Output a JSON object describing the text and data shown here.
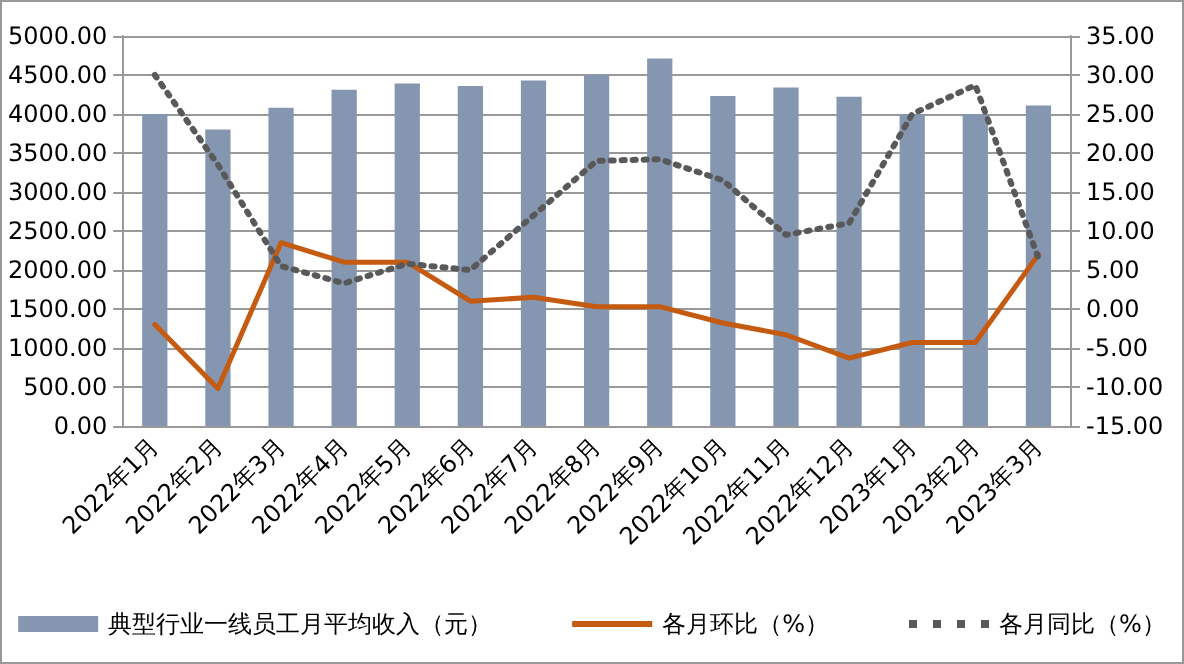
{
  "chart_data": {
    "type": "bar",
    "categories": [
      "2022年1月",
      "2022年2月",
      "2022年3月",
      "2022年4月",
      "2022年5月",
      "2022年6月",
      "2022年7月",
      "2022年8月",
      "2022年9月",
      "2022年10月",
      "2022年11月",
      "2022年12月",
      "2023年1月",
      "2023年2月",
      "2023年3月"
    ],
    "series": [
      {
        "name": "典型行业一线员工月平均收入（元）",
        "color": "#8496b0",
        "values": [
          4000,
          3800,
          4080,
          4310,
          4390,
          4360,
          4430,
          4500,
          4710,
          4230,
          4340,
          4220,
          4000,
          4000,
          4110
        ]
      },
      {
        "name": "各月环比（%）",
        "type": "line",
        "axis": "y2",
        "color": "#c55a11",
        "line_style": "solid",
        "values": [
          -2.0,
          -10.2,
          8.5,
          6.0,
          6.0,
          1.0,
          1.5,
          0.3,
          0.3,
          -1.8,
          -3.3,
          -6.3,
          -4.3,
          -4.3,
          7.0
        ]
      },
      {
        "name": "各月同比（%）",
        "type": "line",
        "axis": "y2",
        "color": "#595959",
        "line_style": "dotted",
        "values": [
          30.0,
          18.5,
          5.5,
          3.3,
          5.8,
          5.0,
          12.0,
          19.0,
          19.2,
          16.5,
          9.5,
          11.0,
          25.0,
          28.7,
          6.5
        ]
      }
    ],
    "ylim": [
      0,
      5000
    ],
    "yticks": [
      {
        "value": 0,
        "label": "0.00"
      },
      {
        "value": 500,
        "label": "500.00"
      },
      {
        "value": 1000,
        "label": "1000.00"
      },
      {
        "value": 1500,
        "label": "1500.00"
      },
      {
        "value": 2000,
        "label": "2000.00"
      },
      {
        "value": 2500,
        "label": "2500.00"
      },
      {
        "value": 3000,
        "label": "3000.00"
      },
      {
        "value": 3500,
        "label": "3500.00"
      },
      {
        "value": 4000,
        "label": "4000.00"
      },
      {
        "value": 4500,
        "label": "4500.00"
      },
      {
        "value": 5000,
        "label": "5000.00"
      }
    ],
    "y2lim": [
      -15,
      35
    ],
    "y2ticks": [
      {
        "value": -15,
        "label": "-15.00"
      },
      {
        "value": -10,
        "label": "-10.00"
      },
      {
        "value": -5,
        "label": "-5.00"
      },
      {
        "value": 0,
        "label": "0.00"
      },
      {
        "value": 5,
        "label": "5.00"
      },
      {
        "value": 10,
        "label": "10.00"
      },
      {
        "value": 15,
        "label": "15.00"
      },
      {
        "value": 20,
        "label": "20.00"
      },
      {
        "value": 25,
        "label": "25.00"
      },
      {
        "value": 30,
        "label": "30.00"
      },
      {
        "value": 35,
        "label": "35.00"
      }
    ],
    "grid": "y",
    "legend": "bottom",
    "marker": "none"
  }
}
